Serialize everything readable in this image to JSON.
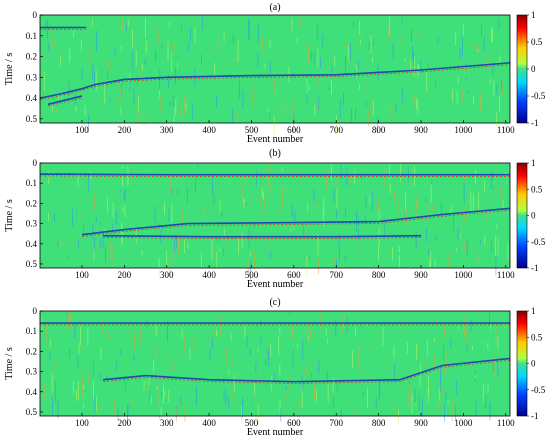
{
  "colors": {
    "background": "#2ee8a0",
    "neutral": "#3fe07a",
    "positive": "#e62a10",
    "negative": "#1030c0",
    "frame": "#000000"
  },
  "chart_data": [
    {
      "type": "heatmap",
      "panel_label": "(a)",
      "xlabel": "Event number",
      "ylabel": "Time / s",
      "xlim": [
        1,
        1110
      ],
      "ylim": [
        0.52,
        0
      ],
      "xticks": [
        100,
        200,
        300,
        400,
        500,
        600,
        700,
        800,
        900,
        1000,
        1100
      ],
      "yticks": [
        0,
        0.1,
        0.2,
        0.3,
        0.4,
        0.5
      ],
      "colorbar": {
        "min": -1,
        "max": 1,
        "ticks": [
          1,
          0.5,
          0,
          -0.5,
          -1
        ]
      },
      "events": [
        {
          "name": "first-arrival",
          "points": [
            [
              1,
              0.4
            ],
            [
              50,
              0.38
            ],
            [
              100,
              0.355
            ],
            [
              130,
              0.335
            ],
            [
              200,
              0.31
            ],
            [
              300,
              0.3
            ],
            [
              500,
              0.292
            ],
            [
              700,
              0.288
            ],
            [
              900,
              0.265
            ],
            [
              1110,
              0.23
            ]
          ]
        },
        {
          "name": "shallow-event",
          "points": [
            [
              1,
              0.06
            ],
            [
              110,
              0.06
            ]
          ]
        },
        {
          "name": "early-event",
          "points": [
            [
              20,
              0.43
            ],
            [
              60,
              0.41
            ],
            [
              100,
              0.39
            ]
          ]
        }
      ]
    },
    {
      "type": "heatmap",
      "panel_label": "(b)",
      "xlabel": "Event number",
      "ylabel": "Time / s",
      "xlim": [
        1,
        1110
      ],
      "ylim": [
        0.52,
        0
      ],
      "xticks": [
        100,
        200,
        300,
        400,
        500,
        600,
        700,
        800,
        900,
        1000,
        1100
      ],
      "yticks": [
        0,
        0.1,
        0.2,
        0.3,
        0.4,
        0.5
      ],
      "colorbar": {
        "min": -1,
        "max": 1,
        "ticks": [
          1,
          0.5,
          0,
          -0.5,
          -1
        ]
      },
      "events": [
        {
          "name": "direct-event",
          "points": [
            [
              1,
              0.055
            ],
            [
              300,
              0.058
            ],
            [
              700,
              0.058
            ],
            [
              1110,
              0.058
            ]
          ]
        },
        {
          "name": "first-arrival",
          "points": [
            [
              100,
              0.355
            ],
            [
              200,
              0.33
            ],
            [
              350,
              0.3
            ],
            [
              600,
              0.295
            ],
            [
              800,
              0.29
            ],
            [
              950,
              0.255
            ],
            [
              1110,
              0.225
            ]
          ]
        },
        {
          "name": "second-event",
          "points": [
            [
              150,
              0.36
            ],
            [
              400,
              0.365
            ],
            [
              700,
              0.365
            ],
            [
              900,
              0.36
            ]
          ]
        }
      ]
    },
    {
      "type": "heatmap",
      "panel_label": "(c)",
      "xlabel": "Event number",
      "ylabel": "Time / s",
      "xlim": [
        1,
        1110
      ],
      "ylim": [
        0.52,
        0
      ],
      "xticks": [
        100,
        200,
        300,
        400,
        500,
        600,
        700,
        800,
        900,
        1000,
        1100
      ],
      "yticks": [
        0,
        0.1,
        0.2,
        0.3,
        0.4,
        0.5
      ],
      "colorbar": {
        "min": -1,
        "max": 1,
        "ticks": [
          1,
          0.5,
          0,
          -0.5,
          -1
        ]
      },
      "events": [
        {
          "name": "direct-event",
          "points": [
            [
              1,
              0.06
            ],
            [
              400,
              0.06
            ],
            [
              800,
              0.06
            ],
            [
              1110,
              0.06
            ]
          ]
        },
        {
          "name": "first-arrival",
          "points": [
            [
              150,
              0.34
            ],
            [
              250,
              0.32
            ],
            [
              400,
              0.34
            ],
            [
              600,
              0.35
            ],
            [
              850,
              0.34
            ],
            [
              950,
              0.27
            ],
            [
              1110,
              0.235
            ]
          ]
        }
      ]
    }
  ]
}
